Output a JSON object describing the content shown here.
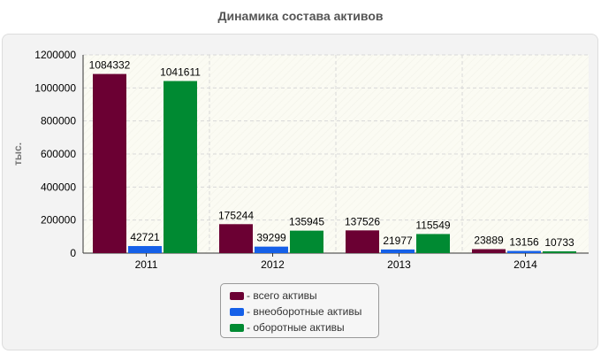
{
  "chart_data": {
    "type": "bar",
    "title": "Динамика состава активов",
    "xlabel": "",
    "ylabel": "тыс.",
    "categories": [
      "2011",
      "2012",
      "2013",
      "2014"
    ],
    "ylim": [
      0,
      1200000
    ],
    "yticks": [
      "0",
      "200000",
      "400000",
      "600000",
      "800000",
      "1000000",
      "1200000"
    ],
    "ytick_values": [
      0,
      200000,
      400000,
      600000,
      800000,
      1000000,
      1200000
    ],
    "grid": true,
    "legend_position": "bottom-center",
    "series": [
      {
        "name": "- всего активы",
        "color": "#6b0033",
        "values": [
          1084332,
          175244,
          137526,
          23889
        ]
      },
      {
        "name": "- внеоборотные активы",
        "color": "#1560e8",
        "values": [
          42721,
          39299,
          21977,
          13156
        ]
      },
      {
        "name": "- оборотные активы",
        "color": "#008a32",
        "values": [
          1041611,
          135945,
          115549,
          10733
        ]
      }
    ]
  }
}
